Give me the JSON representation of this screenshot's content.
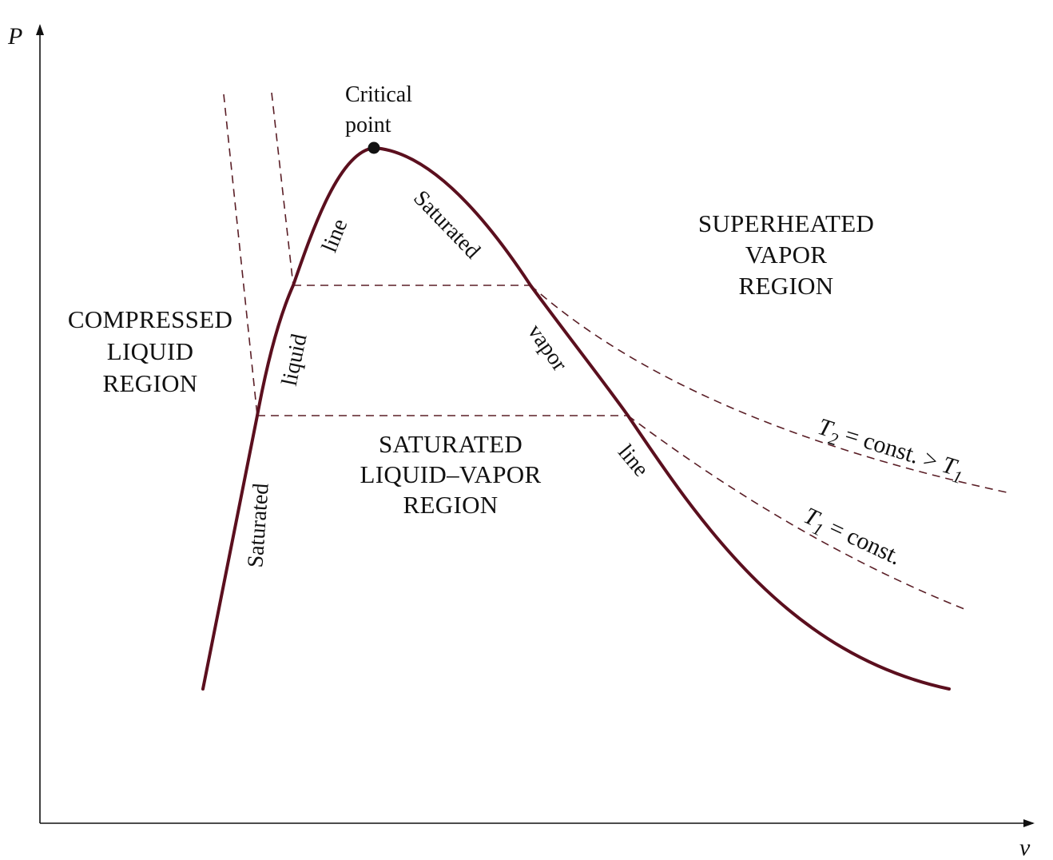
{
  "axes": {
    "y_label": "P",
    "x_label": "v"
  },
  "critical_point": {
    "label_line1": "Critical",
    "label_line2": "point"
  },
  "regions": {
    "compressed_liquid": [
      "COMPRESSED",
      "LIQUID",
      "REGION"
    ],
    "superheated_vapor": [
      "SUPERHEATED",
      "VAPOR",
      "REGION"
    ],
    "saturated_mixture": [
      "SATURATED",
      "LIQUID–VAPOR",
      "REGION"
    ]
  },
  "curve_labels": {
    "sat_liquid": {
      "word1": "Saturated",
      "word2": "liquid",
      "word3": "line"
    },
    "sat_vapor": {
      "word1": "Saturated",
      "word2": "vapor",
      "word3": "line"
    }
  },
  "isotherms": {
    "t2": {
      "var": "T",
      "sub": "2",
      "text": " = const. > ",
      "cmp_var": "T",
      "cmp_sub": "1"
    },
    "t1": {
      "var": "T",
      "sub": "1",
      "text": " = const."
    }
  },
  "colors": {
    "dome": "#5b0f1e",
    "isotherm": "#5a1e26",
    "axis": "#111111"
  }
}
